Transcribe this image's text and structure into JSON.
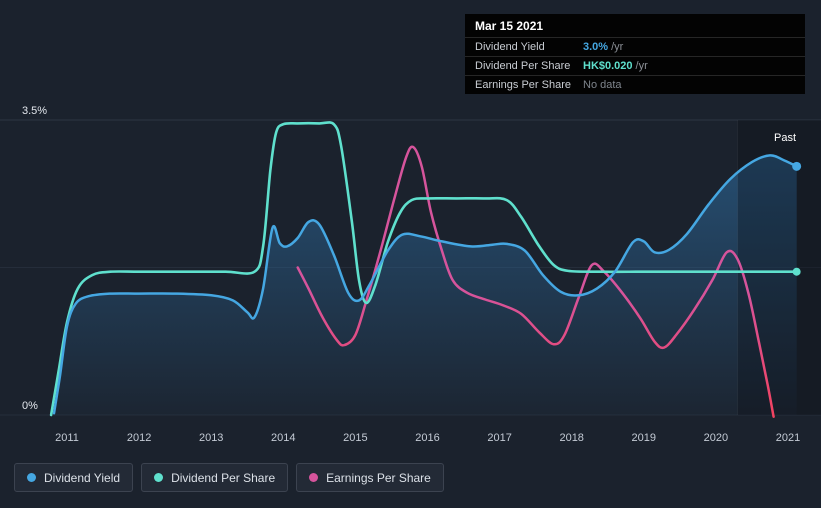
{
  "page": {
    "background": "#1b222d"
  },
  "tooltip": {
    "date": "Mar 15 2021",
    "rows": [
      {
        "label": "Dividend Yield",
        "value": "3.0%",
        "suffix": "/yr",
        "value_color": "#45a7e2"
      },
      {
        "label": "Dividend Per Share",
        "value": "HK$0.020",
        "suffix": "/yr",
        "value_color": "#5fe0cd"
      },
      {
        "label": "Earnings Per Share",
        "value": "No data",
        "suffix": "",
        "value_color": "#7f858d"
      }
    ]
  },
  "chart_data": {
    "type": "line",
    "xlim": [
      2010.1,
      2021.45
    ],
    "ylim": [
      0,
      3.5
    ],
    "y_ticks": [
      {
        "value": 3.5,
        "label": "3.5%"
      },
      {
        "value": 0,
        "label": "0%"
      }
    ],
    "x_ticks": [
      {
        "value": 2011,
        "label": "2011"
      },
      {
        "value": 2012,
        "label": "2012"
      },
      {
        "value": 2013,
        "label": "2013"
      },
      {
        "value": 2014,
        "label": "2014"
      },
      {
        "value": 2015,
        "label": "2015"
      },
      {
        "value": 2016,
        "label": "2016"
      },
      {
        "value": 2017,
        "label": "2017"
      },
      {
        "value": 2018,
        "label": "2018"
      },
      {
        "value": 2019,
        "label": "2019"
      },
      {
        "value": 2020,
        "label": "2020"
      },
      {
        "value": 2021,
        "label": "2021"
      }
    ],
    "gridlines": [
      3.5,
      1.75,
      0
    ],
    "past_band": {
      "start": 2020.3,
      "label": "Past"
    },
    "legend_position": "bottom",
    "series": [
      {
        "name": "Dividend Yield",
        "color": "#45a7e2",
        "area": true,
        "area_color": "#2f73ab",
        "end_dot": true,
        "width": 2.5,
        "points": [
          [
            2010.82,
            0.02
          ],
          [
            2010.9,
            0.45
          ],
          [
            2011.0,
            1.05
          ],
          [
            2011.12,
            1.32
          ],
          [
            2011.3,
            1.41
          ],
          [
            2011.6,
            1.44
          ],
          [
            2012.0,
            1.44
          ],
          [
            2012.5,
            1.44
          ],
          [
            2013.0,
            1.42
          ],
          [
            2013.3,
            1.36
          ],
          [
            2013.5,
            1.22
          ],
          [
            2013.6,
            1.16
          ],
          [
            2013.72,
            1.5
          ],
          [
            2013.85,
            2.22
          ],
          [
            2013.95,
            2.04
          ],
          [
            2014.05,
            2.0
          ],
          [
            2014.2,
            2.1
          ],
          [
            2014.35,
            2.29
          ],
          [
            2014.5,
            2.26
          ],
          [
            2014.7,
            1.9
          ],
          [
            2014.9,
            1.45
          ],
          [
            2015.05,
            1.36
          ],
          [
            2015.2,
            1.55
          ],
          [
            2015.45,
            1.95
          ],
          [
            2015.65,
            2.14
          ],
          [
            2015.9,
            2.12
          ],
          [
            2016.2,
            2.06
          ],
          [
            2016.6,
            2.0
          ],
          [
            2016.9,
            2.02
          ],
          [
            2017.1,
            2.03
          ],
          [
            2017.35,
            1.95
          ],
          [
            2017.6,
            1.66
          ],
          [
            2017.85,
            1.46
          ],
          [
            2018.1,
            1.42
          ],
          [
            2018.35,
            1.5
          ],
          [
            2018.6,
            1.7
          ],
          [
            2018.85,
            2.05
          ],
          [
            2019.0,
            2.06
          ],
          [
            2019.15,
            1.93
          ],
          [
            2019.35,
            1.96
          ],
          [
            2019.6,
            2.15
          ],
          [
            2019.9,
            2.5
          ],
          [
            2020.2,
            2.8
          ],
          [
            2020.5,
            3.0
          ],
          [
            2020.75,
            3.08
          ],
          [
            2020.95,
            3.02
          ],
          [
            2021.12,
            2.95
          ]
        ]
      },
      {
        "name": "Dividend Per Share",
        "color": "#5fe0cd",
        "area": false,
        "end_dot": true,
        "width": 2.6,
        "points": [
          [
            2010.78,
            0.0
          ],
          [
            2010.88,
            0.5
          ],
          [
            2011.0,
            1.1
          ],
          [
            2011.15,
            1.5
          ],
          [
            2011.35,
            1.66
          ],
          [
            2011.6,
            1.7
          ],
          [
            2012.0,
            1.7
          ],
          [
            2012.6,
            1.7
          ],
          [
            2013.2,
            1.7
          ],
          [
            2013.6,
            1.7
          ],
          [
            2013.72,
            2.0
          ],
          [
            2013.82,
            2.9
          ],
          [
            2013.9,
            3.35
          ],
          [
            2014.0,
            3.45
          ],
          [
            2014.2,
            3.46
          ],
          [
            2014.5,
            3.46
          ],
          [
            2014.7,
            3.45
          ],
          [
            2014.8,
            3.2
          ],
          [
            2014.95,
            2.3
          ],
          [
            2015.05,
            1.6
          ],
          [
            2015.15,
            1.33
          ],
          [
            2015.28,
            1.55
          ],
          [
            2015.45,
            2.05
          ],
          [
            2015.62,
            2.4
          ],
          [
            2015.78,
            2.55
          ],
          [
            2016.0,
            2.57
          ],
          [
            2016.4,
            2.57
          ],
          [
            2016.8,
            2.57
          ],
          [
            2017.1,
            2.55
          ],
          [
            2017.3,
            2.35
          ],
          [
            2017.55,
            2.0
          ],
          [
            2017.75,
            1.78
          ],
          [
            2017.95,
            1.71
          ],
          [
            2018.4,
            1.7
          ],
          [
            2019.0,
            1.7
          ],
          [
            2019.6,
            1.7
          ],
          [
            2020.2,
            1.7
          ],
          [
            2020.8,
            1.7
          ],
          [
            2021.12,
            1.7
          ]
        ]
      },
      {
        "name": "Earnings Per Share",
        "color": "#d6549c",
        "color_low": "#f5415a",
        "area": false,
        "end_dot": false,
        "width": 2.5,
        "points": [
          [
            2014.2,
            1.75
          ],
          [
            2014.35,
            1.5
          ],
          [
            2014.55,
            1.15
          ],
          [
            2014.75,
            0.88
          ],
          [
            2014.85,
            0.83
          ],
          [
            2015.0,
            0.95
          ],
          [
            2015.15,
            1.35
          ],
          [
            2015.35,
            1.95
          ],
          [
            2015.55,
            2.6
          ],
          [
            2015.7,
            3.05
          ],
          [
            2015.8,
            3.18
          ],
          [
            2015.92,
            2.95
          ],
          [
            2016.05,
            2.4
          ],
          [
            2016.2,
            1.95
          ],
          [
            2016.35,
            1.6
          ],
          [
            2016.55,
            1.45
          ],
          [
            2016.8,
            1.37
          ],
          [
            2017.05,
            1.3
          ],
          [
            2017.3,
            1.2
          ],
          [
            2017.55,
            0.98
          ],
          [
            2017.75,
            0.84
          ],
          [
            2017.9,
            0.95
          ],
          [
            2018.1,
            1.4
          ],
          [
            2018.28,
            1.78
          ],
          [
            2018.45,
            1.7
          ],
          [
            2018.7,
            1.45
          ],
          [
            2018.95,
            1.15
          ],
          [
            2019.15,
            0.87
          ],
          [
            2019.28,
            0.8
          ],
          [
            2019.45,
            0.95
          ],
          [
            2019.7,
            1.25
          ],
          [
            2019.95,
            1.6
          ],
          [
            2020.15,
            1.93
          ],
          [
            2020.3,
            1.85
          ],
          [
            2020.45,
            1.45
          ],
          [
            2020.6,
            0.85
          ],
          [
            2020.72,
            0.35
          ],
          [
            2020.8,
            -0.02
          ]
        ]
      }
    ]
  }
}
